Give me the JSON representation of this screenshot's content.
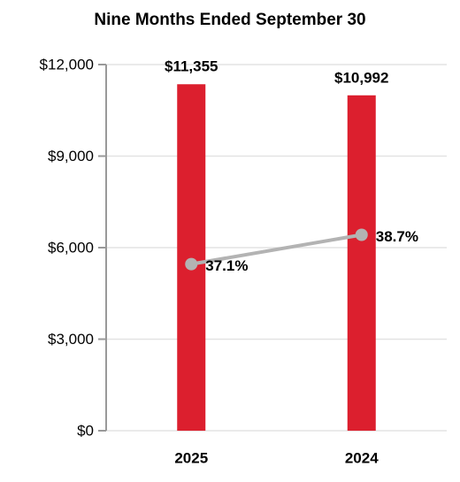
{
  "chart_data": {
    "type": "bar",
    "title": "Nine Months Ended September 30",
    "categories": [
      "2025",
      "2024"
    ],
    "series": [
      {
        "type": "bar",
        "color": "#dc1f2e",
        "values": [
          11355,
          10992
        ],
        "value_labels": [
          "$11,355",
          "$10,992"
        ]
      },
      {
        "type": "line",
        "axis": "y2",
        "color": "#b3b3b3",
        "values": [
          37.1,
          38.7
        ],
        "value_labels": [
          "37.1%",
          "38.7%"
        ]
      }
    ],
    "ylim": [
      0,
      12000
    ],
    "yticks": [
      {
        "value": 0,
        "label": "$0"
      },
      {
        "value": 3000,
        "label": "$3,000"
      },
      {
        "value": 6000,
        "label": "$6,000"
      },
      {
        "value": 9000,
        "label": "$9,000"
      },
      {
        "value": 12000,
        "label": "$12,000"
      }
    ],
    "y2lim": [
      28,
      48
    ],
    "grid": true
  }
}
